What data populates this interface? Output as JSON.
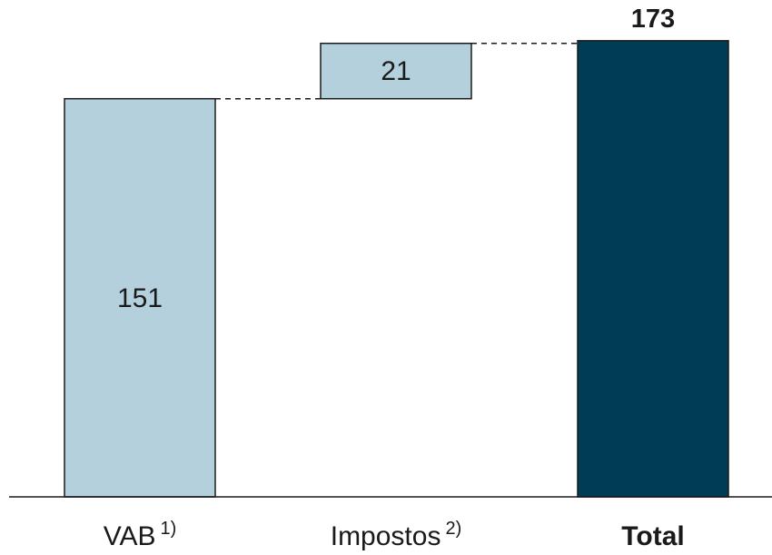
{
  "chart_data": {
    "type": "waterfall",
    "categories": [
      "VAB",
      "Impostos",
      "Total"
    ],
    "footnotes": [
      "1)",
      "2)",
      ""
    ],
    "values": [
      151,
      21,
      173
    ],
    "kinds": [
      "start",
      "increment",
      "total"
    ],
    "value_labels": [
      "151",
      "21",
      "173"
    ],
    "ylim": [
      0,
      185
    ],
    "grid": false,
    "colors": {
      "light": "#b3d0dc",
      "dark": "#003c55"
    }
  }
}
